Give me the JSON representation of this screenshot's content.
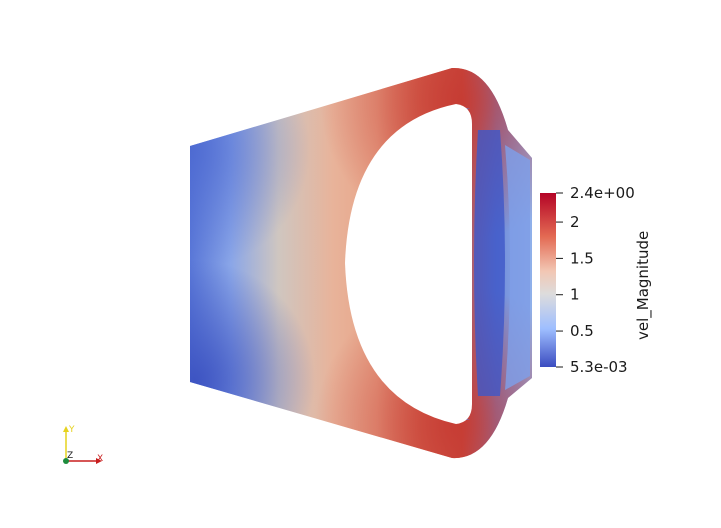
{
  "viewer": {
    "field_name": "vel_Magnitude",
    "colormap": "cool-to-warm",
    "colorbar": {
      "min_label": "5.3e-03",
      "max_label": "2.4e+00",
      "ticks": [
        "2",
        "1.5",
        "1",
        "0.5"
      ],
      "min_value": 0.0053,
      "max_value": 2.4,
      "tick_values": [
        2,
        1.5,
        1,
        0.5
      ]
    },
    "orientation_axes": {
      "x_label": "X",
      "y_label": "Y",
      "z_label": "Z",
      "x_color": "#c81e1e",
      "y_color": "#e6d21e",
      "z_color": "#1e8c3c"
    }
  }
}
